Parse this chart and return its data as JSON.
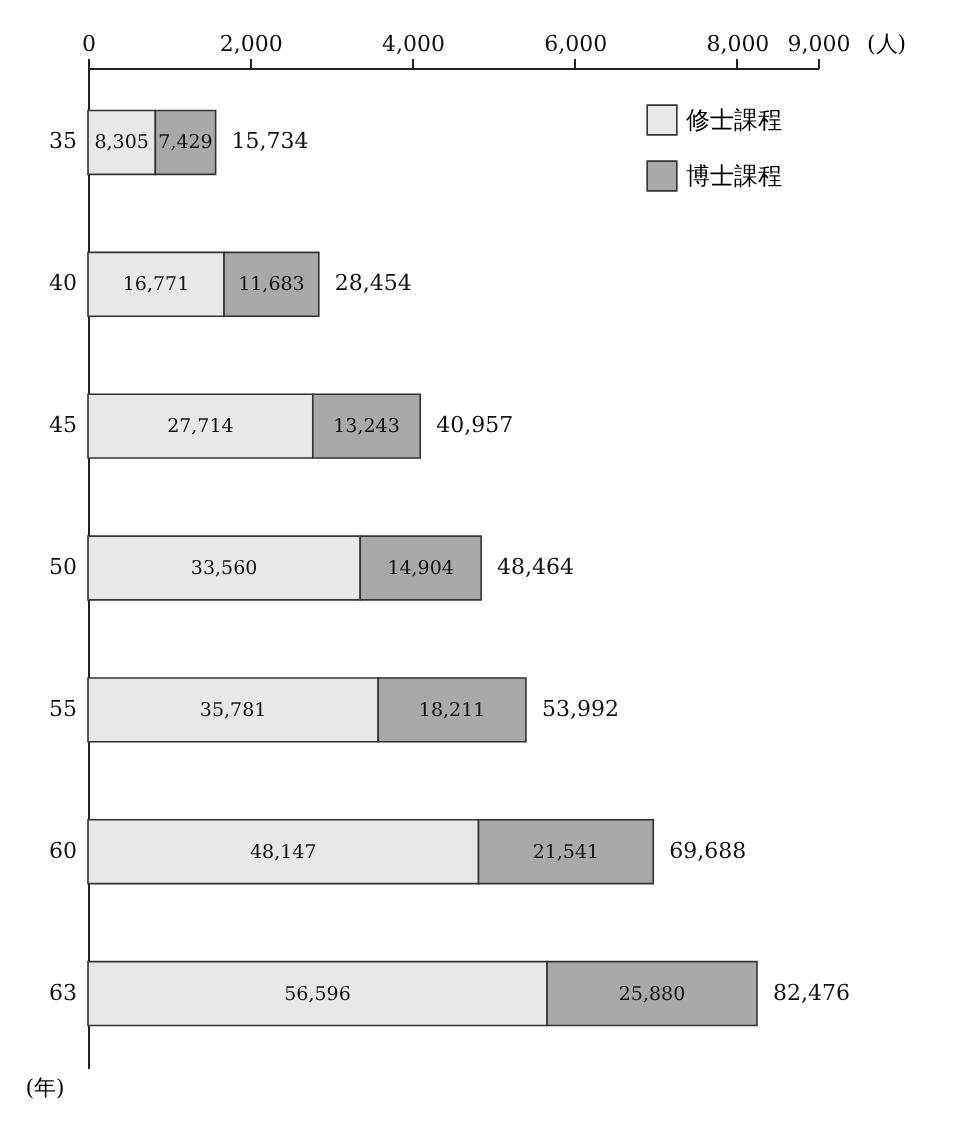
{
  "chart_data": {
    "type": "bar",
    "orientation": "horizontal",
    "stacked": true,
    "x2label": "(人)",
    "ylabel": "(年)",
    "categories": [
      "35",
      "40",
      "45",
      "50",
      "55",
      "60",
      "63"
    ],
    "series": [
      {
        "name": "修士課程",
        "color": "#e8e8e8",
        "values": [
          8305,
          16771,
          27714,
          33560,
          35781,
          48147,
          56596
        ],
        "value_labels": [
          "8,305",
          "16,771",
          "27,714",
          "33,560",
          "35,781",
          "48,147",
          "56,596"
        ]
      },
      {
        "name": "博士課程",
        "color": "#a9a9a9",
        "values": [
          7429,
          11683,
          13243,
          14904,
          18211,
          21541,
          25880
        ],
        "value_labels": [
          "7,429",
          "11,683",
          "13,243",
          "14,904",
          "18,211",
          "21,541",
          "25,880"
        ]
      }
    ],
    "totals": [
      "15,734",
      "28,454",
      "40,957",
      "48,464",
      "53,992",
      "69,688",
      "82,476"
    ],
    "xlim": [
      0,
      90000
    ],
    "x2lim": [
      0,
      9000
    ],
    "x2ticks": [
      0,
      {
        "value": 2000,
        "label": "2,000"
      },
      {
        "value": 4000,
        "label": "4,000"
      },
      {
        "value": 6000,
        "label": "6,000"
      },
      {
        "value": 8000,
        "label": "8,000"
      },
      {
        "value": 9000,
        "label": "9,000"
      }
    ],
    "legend": "top right",
    "grid": false
  }
}
